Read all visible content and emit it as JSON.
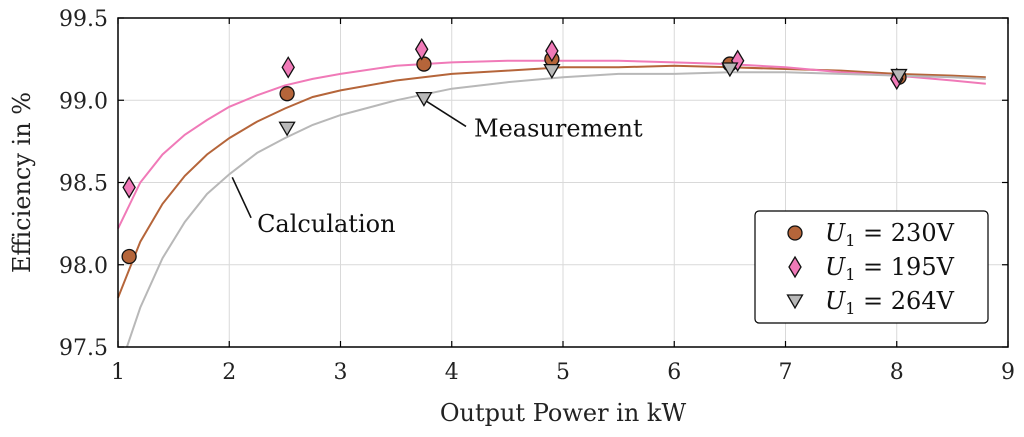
{
  "chart_data": {
    "type": "scatter",
    "xlabel": "Output Power in kW",
    "ylabel": "Efficiency in %",
    "xlim": [
      1,
      9
    ],
    "ylim": [
      97.5,
      99.5
    ],
    "xticks": [
      1,
      2,
      3,
      4,
      5,
      6,
      7,
      8,
      9
    ],
    "yticks": [
      97.5,
      98.0,
      98.5,
      99.0,
      99.5
    ],
    "ytick_labels": [
      "97.5",
      "98.0",
      "98.5",
      "99.0",
      "99.5"
    ],
    "grid": true,
    "legend_position": "bottom-right",
    "series": [
      {
        "key": "u230",
        "legend": {
          "var": "U",
          "sub": "1",
          "rest": " = 230V"
        },
        "color": "#b5653a",
        "marker": "circle",
        "measurement": {
          "x": [
            1.1,
            2.52,
            3.75,
            4.9,
            6.5,
            8.02
          ],
          "y": [
            98.05,
            99.04,
            99.22,
            99.25,
            99.22,
            99.14
          ]
        },
        "calculation": {
          "x": [
            1.0,
            1.2,
            1.4,
            1.6,
            1.8,
            2.0,
            2.25,
            2.5,
            2.75,
            3.0,
            3.5,
            4.0,
            4.5,
            5.0,
            5.5,
            6.0,
            6.5,
            7.0,
            7.5,
            8.0,
            8.5,
            8.8
          ],
          "y": [
            97.8,
            98.14,
            98.37,
            98.54,
            98.67,
            98.77,
            98.87,
            98.95,
            99.02,
            99.06,
            99.12,
            99.16,
            99.18,
            99.2,
            99.2,
            99.21,
            99.2,
            99.19,
            99.18,
            99.16,
            99.15,
            99.14
          ]
        }
      },
      {
        "key": "u195",
        "legend": {
          "var": "U",
          "sub": "1",
          "rest": " = 195V"
        },
        "color": "#f07ab8",
        "marker": "diamond",
        "measurement": {
          "x": [
            1.1,
            2.53,
            3.73,
            4.9,
            6.57,
            8.0
          ],
          "y": [
            98.47,
            99.2,
            99.31,
            99.3,
            99.24,
            99.13
          ]
        },
        "calculation": {
          "x": [
            1.0,
            1.2,
            1.4,
            1.6,
            1.8,
            2.0,
            2.25,
            2.5,
            2.75,
            3.0,
            3.5,
            4.0,
            4.5,
            5.0,
            5.5,
            6.0,
            6.5,
            7.0,
            7.5,
            8.0,
            8.5,
            8.8
          ],
          "y": [
            98.22,
            98.5,
            98.67,
            98.79,
            98.88,
            98.96,
            99.03,
            99.09,
            99.13,
            99.16,
            99.21,
            99.23,
            99.24,
            99.24,
            99.24,
            99.23,
            99.22,
            99.2,
            99.17,
            99.15,
            99.12,
            99.1
          ]
        }
      },
      {
        "key": "u264",
        "legend": {
          "var": "U",
          "sub": "1",
          "rest": " = 264V"
        },
        "color": "#b8b8b8",
        "marker": "triangle-down",
        "measurement": {
          "x": [
            2.52,
            3.75,
            4.9,
            6.5,
            8.02
          ],
          "y": [
            98.83,
            99.01,
            99.18,
            99.19,
            99.15
          ]
        },
        "calculation": {
          "x": [
            1.08,
            1.2,
            1.4,
            1.6,
            1.8,
            2.0,
            2.25,
            2.5,
            2.75,
            3.0,
            3.5,
            4.0,
            4.5,
            5.0,
            5.5,
            6.0,
            6.5,
            7.0,
            7.5,
            8.0,
            8.5,
            8.8
          ],
          "y": [
            97.5,
            97.74,
            98.04,
            98.26,
            98.43,
            98.55,
            98.68,
            98.77,
            98.85,
            98.91,
            99.0,
            99.07,
            99.11,
            99.14,
            99.16,
            99.16,
            99.17,
            99.17,
            99.16,
            99.15,
            99.14,
            99.13
          ]
        }
      }
    ],
    "annotations": [
      {
        "text": "Measurement",
        "target": {
          "x": 3.75,
          "y": 99.01
        },
        "label_at": {
          "x": 4.2,
          "y": 98.78
        }
      },
      {
        "text": "Calculation",
        "target": {
          "x": 2.0,
          "y": 98.55
        },
        "label_at": {
          "x": 2.25,
          "y": 98.2
        }
      }
    ]
  }
}
